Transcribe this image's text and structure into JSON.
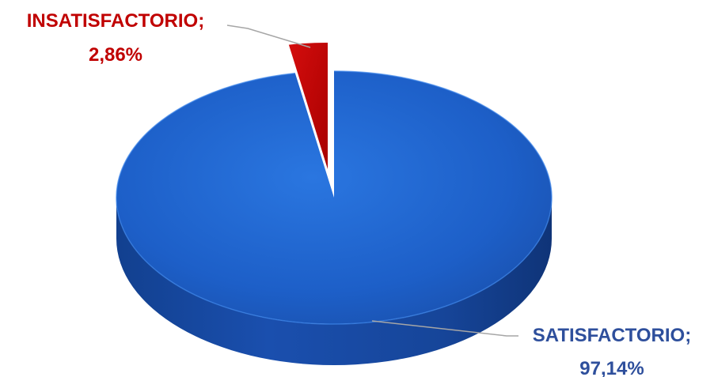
{
  "chart_data": {
    "type": "pie",
    "title": "",
    "categories": [
      "INSATISFACTORIO",
      "SATISFACTORIO"
    ],
    "values": [
      2.86,
      97.14
    ],
    "data_labels": [
      {
        "category": "INSATISFACTORIO;",
        "value": "2,86%"
      },
      {
        "category": "SATISFACTORIO;",
        "value": "97,14%"
      }
    ],
    "colors": [
      "#c00000",
      "#1f5fc4"
    ],
    "label_colors": [
      "#c00000",
      "#2e4f9c"
    ],
    "legend": "none",
    "style": "3d",
    "exploded_slice": "INSATISFACTORIO"
  }
}
